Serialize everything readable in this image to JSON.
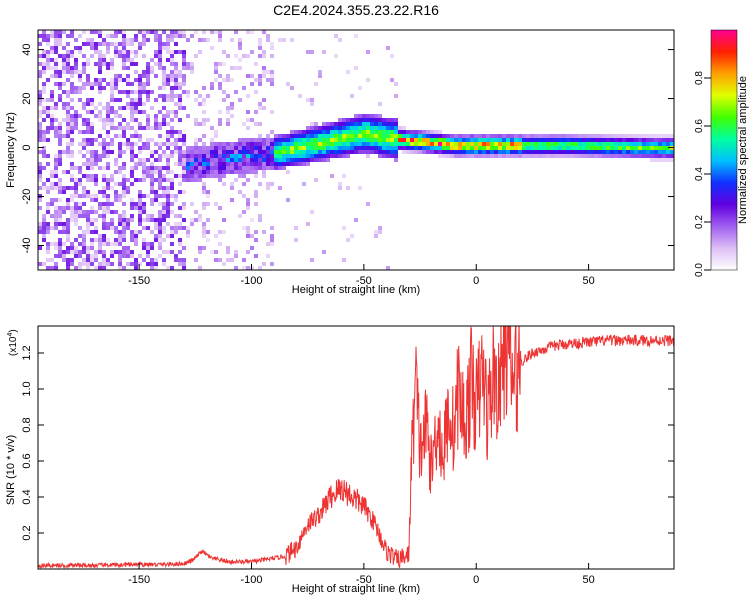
{
  "title": "C2E4.2024.355.23.22.R16",
  "chart_data": [
    {
      "type": "heatmap",
      "xlabel": "Height of straight line (km)",
      "ylabel": "Frequency (Hz)",
      "xlim": [
        -195,
        88
      ],
      "ylim": [
        -50,
        48
      ],
      "xticks": [
        -150,
        -100,
        -50,
        0,
        50
      ],
      "yticks": [
        -40,
        -20,
        0,
        20,
        40
      ],
      "grid": false,
      "ridge": {
        "height_km": [
          -130,
          -110,
          -90,
          -75,
          -60,
          -50,
          -40,
          -30,
          -20,
          -10,
          0,
          10,
          20,
          40,
          60,
          80,
          88
        ],
        "frequency_hz": [
          -8,
          -5,
          -3,
          0,
          3,
          5,
          3,
          2,
          1,
          0,
          0,
          0,
          0,
          0,
          -0.5,
          -1,
          -1
        ]
      },
      "colorbar": {
        "label": "Normalized spectral amplitude",
        "range": [
          0,
          1
        ],
        "ticks": [
          0.0,
          0.2,
          0.4,
          0.6,
          0.8
        ],
        "tick_labels": [
          "0.0",
          "0.2",
          "0.4",
          "0.6",
          "0.8"
        ],
        "colors": [
          "#ffffff",
          "#ddbff5",
          "#a05ef0",
          "#6000e0",
          "#1030ff",
          "#00c0ff",
          "#00ffa0",
          "#40ff00",
          "#e0ff00",
          "#ffa000",
          "#ff2000",
          "#ff0090"
        ]
      }
    },
    {
      "type": "line",
      "xlabel": "Height of straight line (km)",
      "ylabel": "SNR (10 * v/v)",
      "y_multiplier": "(x10",
      "y_multiplier_exp": "4",
      "y_multiplier_close": ")",
      "xlim": [
        -195,
        88
      ],
      "ylim": [
        0,
        1.35
      ],
      "xticks": [
        -150,
        -100,
        -50,
        0,
        50
      ],
      "yticks": [
        0.2,
        0.4,
        0.6,
        0.8,
        1.0,
        1.2
      ],
      "ytick_labels": [
        "0.2",
        "0.4",
        "0.6",
        "0.8",
        "1.0",
        "1.2"
      ],
      "grid": false,
      "series": [
        {
          "color": "#ee3333",
          "x": [
            -195,
            -170,
            -150,
            -140,
            -130,
            -126,
            -122,
            -118,
            -110,
            -100,
            -95,
            -90,
            -85,
            -80,
            -75,
            -70,
            -65,
            -60,
            -55,
            -50,
            -45,
            -40,
            -35,
            -30,
            -29,
            -28,
            -27,
            -25,
            -22,
            -20,
            -17,
            -15,
            -12,
            -10,
            -8,
            -5,
            -2,
            0,
            3,
            5,
            8,
            10,
            12,
            14,
            16,
            20,
            25,
            30,
            35,
            40,
            50,
            60,
            70,
            80,
            88
          ],
          "y": [
            0.02,
            0.02,
            0.025,
            0.025,
            0.03,
            0.05,
            0.1,
            0.06,
            0.04,
            0.04,
            0.05,
            0.06,
            0.07,
            0.12,
            0.25,
            0.3,
            0.4,
            0.45,
            0.4,
            0.35,
            0.25,
            0.1,
            0.05,
            0.08,
            0.55,
            0.8,
            1.05,
            0.65,
            0.8,
            0.55,
            0.85,
            0.6,
            0.9,
            0.75,
            1.0,
            0.8,
            1.05,
            0.9,
            1.1,
            0.85,
            1.1,
            0.95,
            1.2,
            1.25,
            1.05,
            1.15,
            1.2,
            1.22,
            1.24,
            1.25,
            1.26,
            1.27,
            1.27,
            1.27,
            1.27
          ]
        }
      ]
    }
  ]
}
